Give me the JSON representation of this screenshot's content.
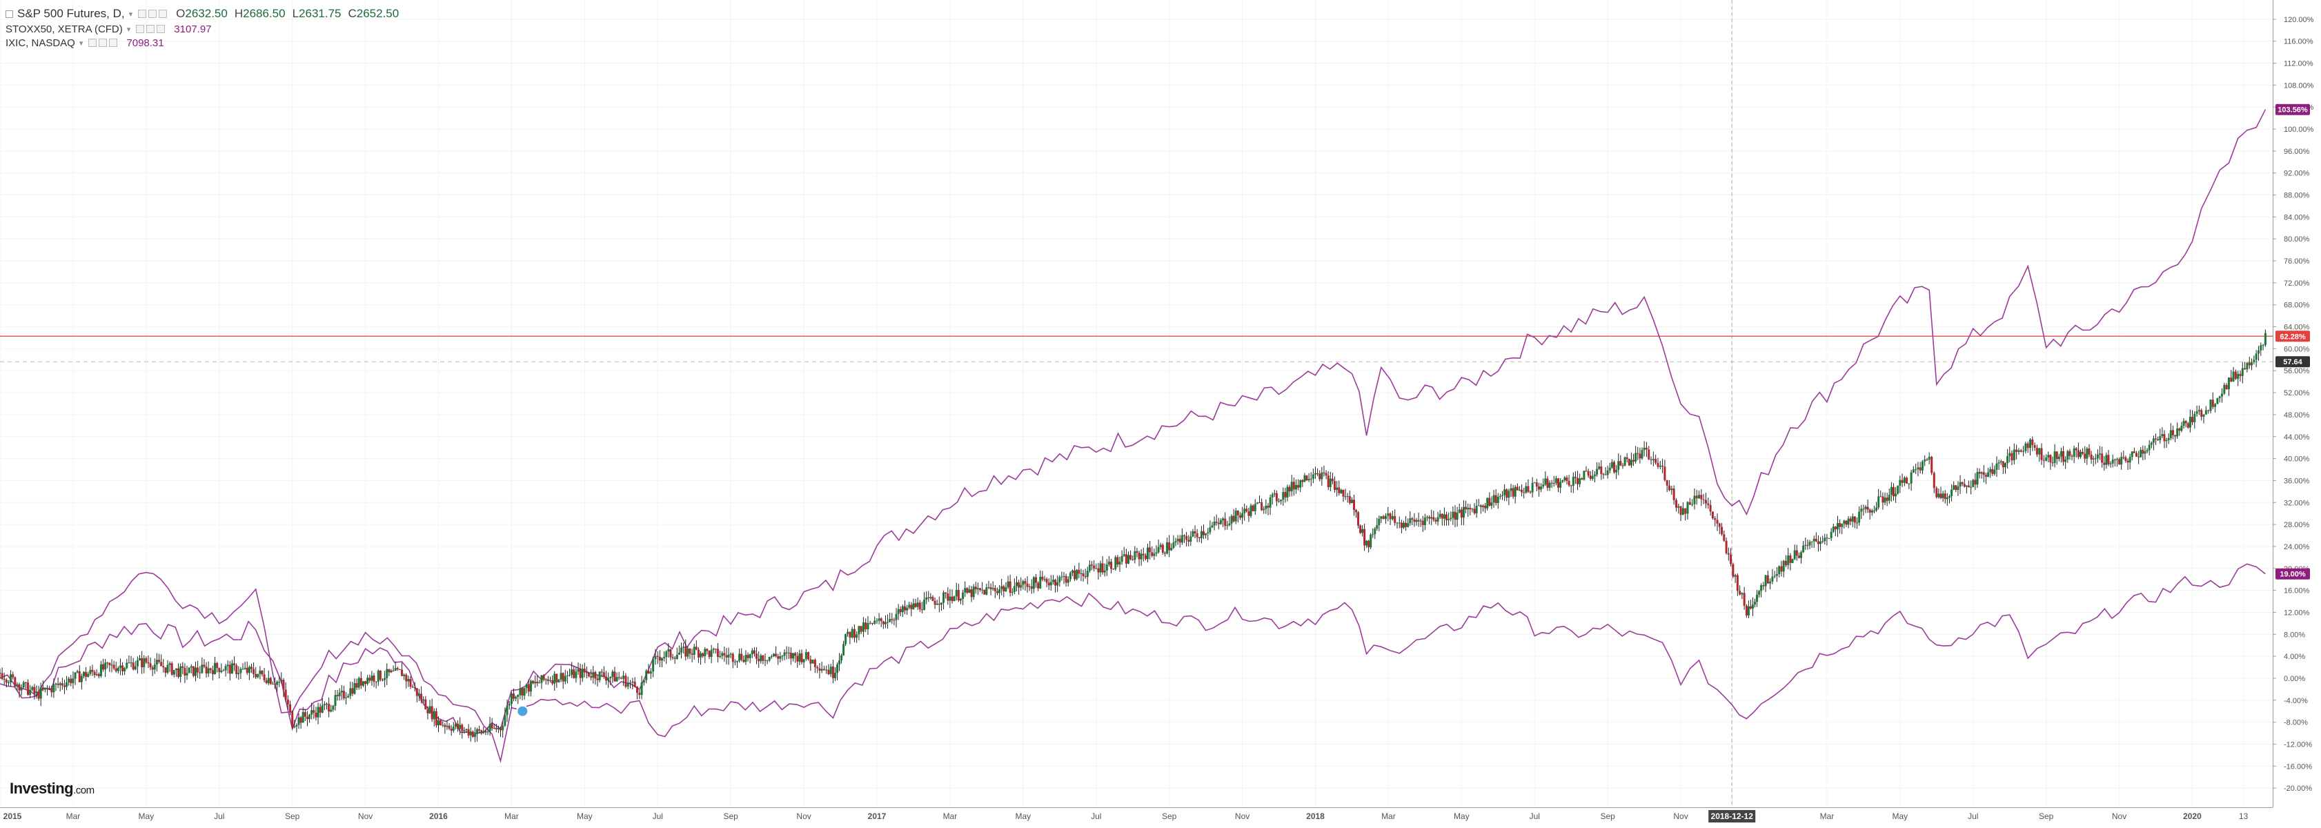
{
  "window": {
    "title": "S&P 500 Futures, D"
  },
  "legend": {
    "main": {
      "name": "S&P 500 Futures, D,",
      "o_key": "O",
      "o": "2632.50",
      "h_key": "H",
      "h": "2686.50",
      "l_key": "L",
      "l": "2631.75",
      "c_key": "C",
      "c": "2652.50"
    },
    "comparisons": [
      {
        "name": "STOXX50, XETRA (CFD)",
        "value": "3107.97"
      },
      {
        "name": "IXIC, NASDAQ",
        "value": "7098.31"
      }
    ]
  },
  "logo": {
    "text": "Investing",
    "suffix": ".com"
  },
  "colors": {
    "up": "#1a7a35",
    "down": "#b3262c",
    "compare_line": "#9a3d9a",
    "red_line": "#e35a5a",
    "badge_nasdaq": "#8e1d7d",
    "badge_stoxx": "#8e1d7d",
    "badge_red": "#e34040",
    "badge_dark": "#333333",
    "grid": "#f2f2f2"
  },
  "chart_data": {
    "type": "line",
    "x_axis": {
      "ticks": [
        "2015",
        "Mar",
        "May",
        "Jul",
        "Sep",
        "Nov",
        "2016",
        "Mar",
        "May",
        "Jul",
        "Sep",
        "Nov",
        "2017",
        "Mar",
        "May",
        "Jul",
        "Sep",
        "Nov",
        "2018",
        "Mar",
        "May",
        "Jul",
        "Sep",
        "Nov",
        "2018-12-12",
        "Mar",
        "May",
        "Jul",
        "Sep",
        "Nov",
        "2020",
        "13"
      ],
      "tick_months": [
        0,
        2,
        4,
        6,
        8,
        10,
        12,
        14,
        16,
        18,
        20,
        22,
        24,
        26,
        28,
        30,
        32,
        34,
        36,
        38,
        40,
        42,
        44,
        46,
        47.4,
        50,
        52,
        54,
        56,
        58,
        60,
        61.4
      ],
      "highlight_tick_index": 24,
      "range_months": [
        0,
        62.2
      ]
    },
    "y_axis": {
      "unit": "%",
      "ticks": [
        120,
        116,
        112,
        108,
        104,
        100,
        96,
        92,
        88,
        84,
        80,
        76,
        72,
        68,
        64,
        60,
        56,
        52,
        48,
        44,
        40,
        36,
        32,
        28,
        24,
        20,
        16,
        12,
        8,
        4,
        0,
        -4,
        -8,
        -12,
        -16,
        -20
      ],
      "tick_labels": [
        "120.00%",
        "116.00%",
        "112.00%",
        "108.00%",
        "104.00%",
        "100.00%",
        "96.00%",
        "92.00%",
        "88.00%",
        "84.00%",
        "80.00%",
        "76.00%",
        "72.00%",
        "68.00%",
        "64.00%",
        "60.00%",
        "56.00%",
        "52.00%",
        "48.00%",
        "44.00%",
        "40.00%",
        "36.00%",
        "32.00%",
        "28.00%",
        "24.00%",
        "20.00%",
        "16.00%",
        "12.00%",
        "8.00%",
        "4.00%",
        "0.00%",
        "-4.00%",
        "-8.00%",
        "-12.00%",
        "-16.00%",
        "-20.00%"
      ],
      "range": [
        -23.5,
        123.5
      ]
    },
    "price_markers": [
      {
        "label": "103.56%",
        "value": 103.56,
        "color": "#8e1d7d"
      },
      {
        "label": "62.28%",
        "value": 62.28,
        "color": "#e34040"
      },
      {
        "label": "57.64",
        "value": 57.64,
        "color": "#333333"
      },
      {
        "label": "19.00%",
        "value": 19.0,
        "color": "#8e1d7d"
      }
    ],
    "reference_lines": {
      "red_horizontal": 62.28,
      "dashed_horizontal": 57.64
    },
    "crosshair_month": 47.4,
    "series": [
      {
        "name": "S&P 500 Futures",
        "style": "candles",
        "x": [
          0,
          1,
          2,
          3,
          4,
          5,
          6,
          7,
          7.7,
          8,
          9,
          10,
          11,
          12,
          13,
          13.7,
          14,
          15,
          16,
          17,
          17.5,
          18,
          19,
          20,
          21,
          22,
          22.8,
          23.2,
          24,
          25,
          26,
          27,
          28,
          29,
          30,
          31,
          32,
          33,
          34,
          35,
          36,
          37,
          37.4,
          37.8,
          38.3,
          39,
          40,
          41,
          42,
          43,
          44,
          45,
          45.5,
          46,
          46.5,
          47,
          47.8,
          48.2,
          49,
          50,
          51,
          52,
          52.8,
          53,
          54,
          55,
          55.5,
          56,
          57,
          58,
          59,
          60,
          60.5,
          61,
          61.5,
          62
        ],
        "values": [
          1,
          -3,
          0,
          2,
          3,
          1,
          2,
          1,
          -1,
          -8,
          -5,
          0,
          1,
          -8,
          -10,
          -9,
          -3,
          0,
          1,
          0,
          -2,
          4,
          5,
          4,
          4,
          4,
          1,
          8,
          10,
          13,
          15,
          16,
          17,
          18,
          20,
          22,
          24,
          27,
          30,
          33,
          38,
          32,
          24,
          30,
          28,
          29,
          30,
          33,
          35,
          36,
          38,
          41,
          38,
          30,
          34,
          28,
          12,
          17,
          22,
          26,
          30,
          35,
          40,
          33,
          36,
          40,
          43,
          40,
          41,
          39,
          43,
          47,
          50,
          54,
          57,
          62.28
        ]
      },
      {
        "name": "IXIC, NASDAQ",
        "style": "line",
        "x": [
          0,
          1,
          2,
          3,
          4,
          5,
          6,
          7,
          7.7,
          8,
          9,
          10,
          11,
          12,
          13,
          13.7,
          14,
          15,
          16,
          17,
          17.5,
          18,
          19,
          20,
          21,
          22,
          22.8,
          23.2,
          24,
          25,
          26,
          27,
          28,
          29,
          30,
          31,
          32,
          33,
          34,
          35,
          36,
          37,
          37.4,
          37.8,
          38.3,
          39,
          40,
          41,
          42,
          43,
          44,
          45,
          45.5,
          46,
          46.5,
          47,
          47.8,
          48.2,
          49,
          50,
          51,
          52,
          52.8,
          53,
          54,
          55,
          55.5,
          56,
          57,
          58,
          59,
          60,
          60.5,
          61,
          61.5,
          62
        ],
        "values": [
          -1,
          -3,
          3,
          8,
          10,
          7,
          7,
          9,
          0,
          -8,
          -1,
          5,
          4,
          -8,
          -10,
          -9,
          -2,
          2,
          0,
          0,
          -1,
          5,
          8,
          10,
          13,
          15,
          17,
          20,
          24,
          28,
          32,
          36,
          38,
          40,
          42,
          44,
          46,
          48,
          50,
          52,
          55,
          57,
          44,
          57,
          50,
          52,
          53,
          57,
          62,
          64,
          67,
          68,
          62,
          50,
          48,
          36,
          30,
          36,
          46,
          52,
          60,
          68,
          71,
          55,
          62,
          68,
          74,
          61,
          63,
          68,
          72,
          80,
          88,
          94,
          100,
          103.56
        ]
      },
      {
        "name": "STOXX50, XETRA (CFD)",
        "style": "line",
        "x": [
          0,
          1,
          2,
          3,
          4,
          5,
          6,
          7,
          7.7,
          8,
          9,
          10,
          11,
          12,
          13,
          13.7,
          14,
          15,
          16,
          17,
          17.5,
          18,
          19,
          20,
          21,
          22,
          22.8,
          23.2,
          24,
          25,
          26,
          27,
          28,
          29,
          30,
          31,
          32,
          33,
          34,
          35,
          36,
          37,
          37.4,
          37.8,
          38.3,
          39,
          40,
          41,
          42,
          43,
          44,
          45,
          45.5,
          46,
          46.5,
          47,
          47.8,
          48.2,
          49,
          50,
          51,
          52,
          52.8,
          53,
          54,
          55,
          55.5,
          56,
          57,
          58,
          59,
          60,
          60.5,
          61,
          61.5,
          62
        ],
        "values": [
          0,
          -2,
          6,
          14,
          20,
          14,
          11,
          15,
          -5,
          -7,
          4,
          8,
          5,
          -2,
          -6,
          -14,
          -5,
          -3,
          -5,
          -6,
          -4,
          -11,
          -6,
          -5,
          -5,
          -4,
          -6,
          -2,
          2,
          5,
          8,
          11,
          13,
          15,
          14,
          12,
          11,
          10,
          12,
          10,
          11,
          13,
          4,
          7,
          5,
          7,
          10,
          14,
          9,
          8,
          9,
          7,
          6,
          0,
          2,
          -2,
          -7,
          -4,
          0,
          5,
          8,
          11,
          8,
          5,
          9,
          11,
          4,
          6,
          9,
          13,
          15,
          18,
          17,
          18,
          20,
          19.0
        ]
      }
    ]
  }
}
